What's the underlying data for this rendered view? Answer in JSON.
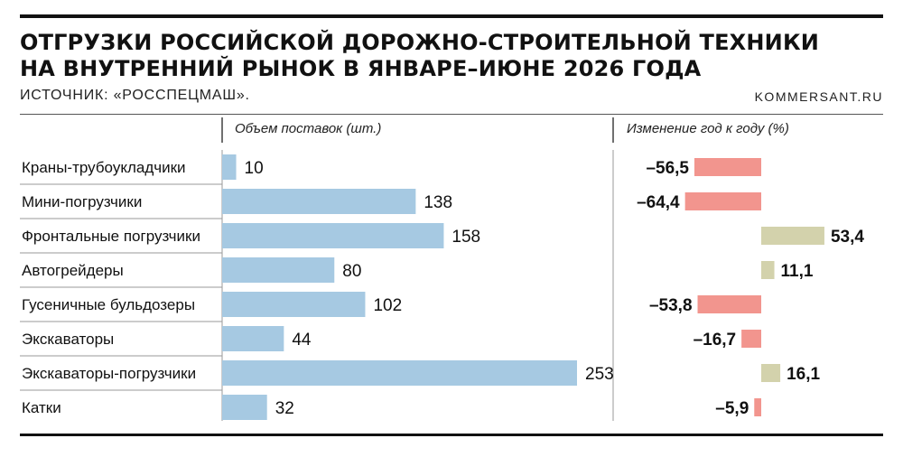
{
  "header": {
    "title_lines": [
      "ОТГРУЗКИ РОССИЙСКОЙ ДОРОЖНО-СТРОИТЕЛЬНОЙ ТЕХНИКИ",
      "НА ВНУТРЕННИЙ РЫНОК В ЯНВАРЕ–ИЮНЕ 2026 ГОДА"
    ],
    "source": "ИСТОЧНИК: «РОССПЕЦМАШ».",
    "site": "KOMMERSANT.RU"
  },
  "colors": {
    "volume_bar": "#a6c9e2",
    "negative_bar": "#f2958e",
    "positive_bar": "#d3d2ac",
    "rule": "#111111",
    "divider": "#9a9a9a"
  },
  "chart_data": [
    {
      "type": "bar",
      "orientation": "horizontal",
      "title": "Объем поставок (шт.)",
      "categories": [
        "Краны-трубоукладчики",
        "Мини-погрузчики",
        "Фронтальные погрузчики",
        "Автогрейдеры",
        "Гусеничные бульдозеры",
        "Экскаваторы",
        "Экскаваторы-погрузчики",
        "Катки"
      ],
      "values": [
        10,
        138,
        158,
        80,
        102,
        44,
        253,
        32
      ],
      "value_labels": [
        "10",
        "138",
        "158",
        "80",
        "102",
        "44",
        "253",
        "32"
      ],
      "xlim": [
        0,
        253
      ]
    },
    {
      "type": "bar",
      "orientation": "horizontal",
      "title": "Изменение год к году (%)",
      "categories": [
        "Краны-трубоукладчики",
        "Мини-погрузчики",
        "Фронтальные погрузчики",
        "Автогрейдеры",
        "Гусеничные бульдозеры",
        "Экскаваторы",
        "Экскаваторы-погрузчики",
        "Катки"
      ],
      "values": [
        -56.5,
        -64.4,
        53.4,
        11.1,
        -53.8,
        -16.7,
        16.1,
        -5.9
      ],
      "value_labels": [
        "–56,5",
        "–64,4",
        "53,4",
        "11,1",
        "–53,8",
        "–16,7",
        "16,1",
        "–5,9"
      ]
    }
  ]
}
